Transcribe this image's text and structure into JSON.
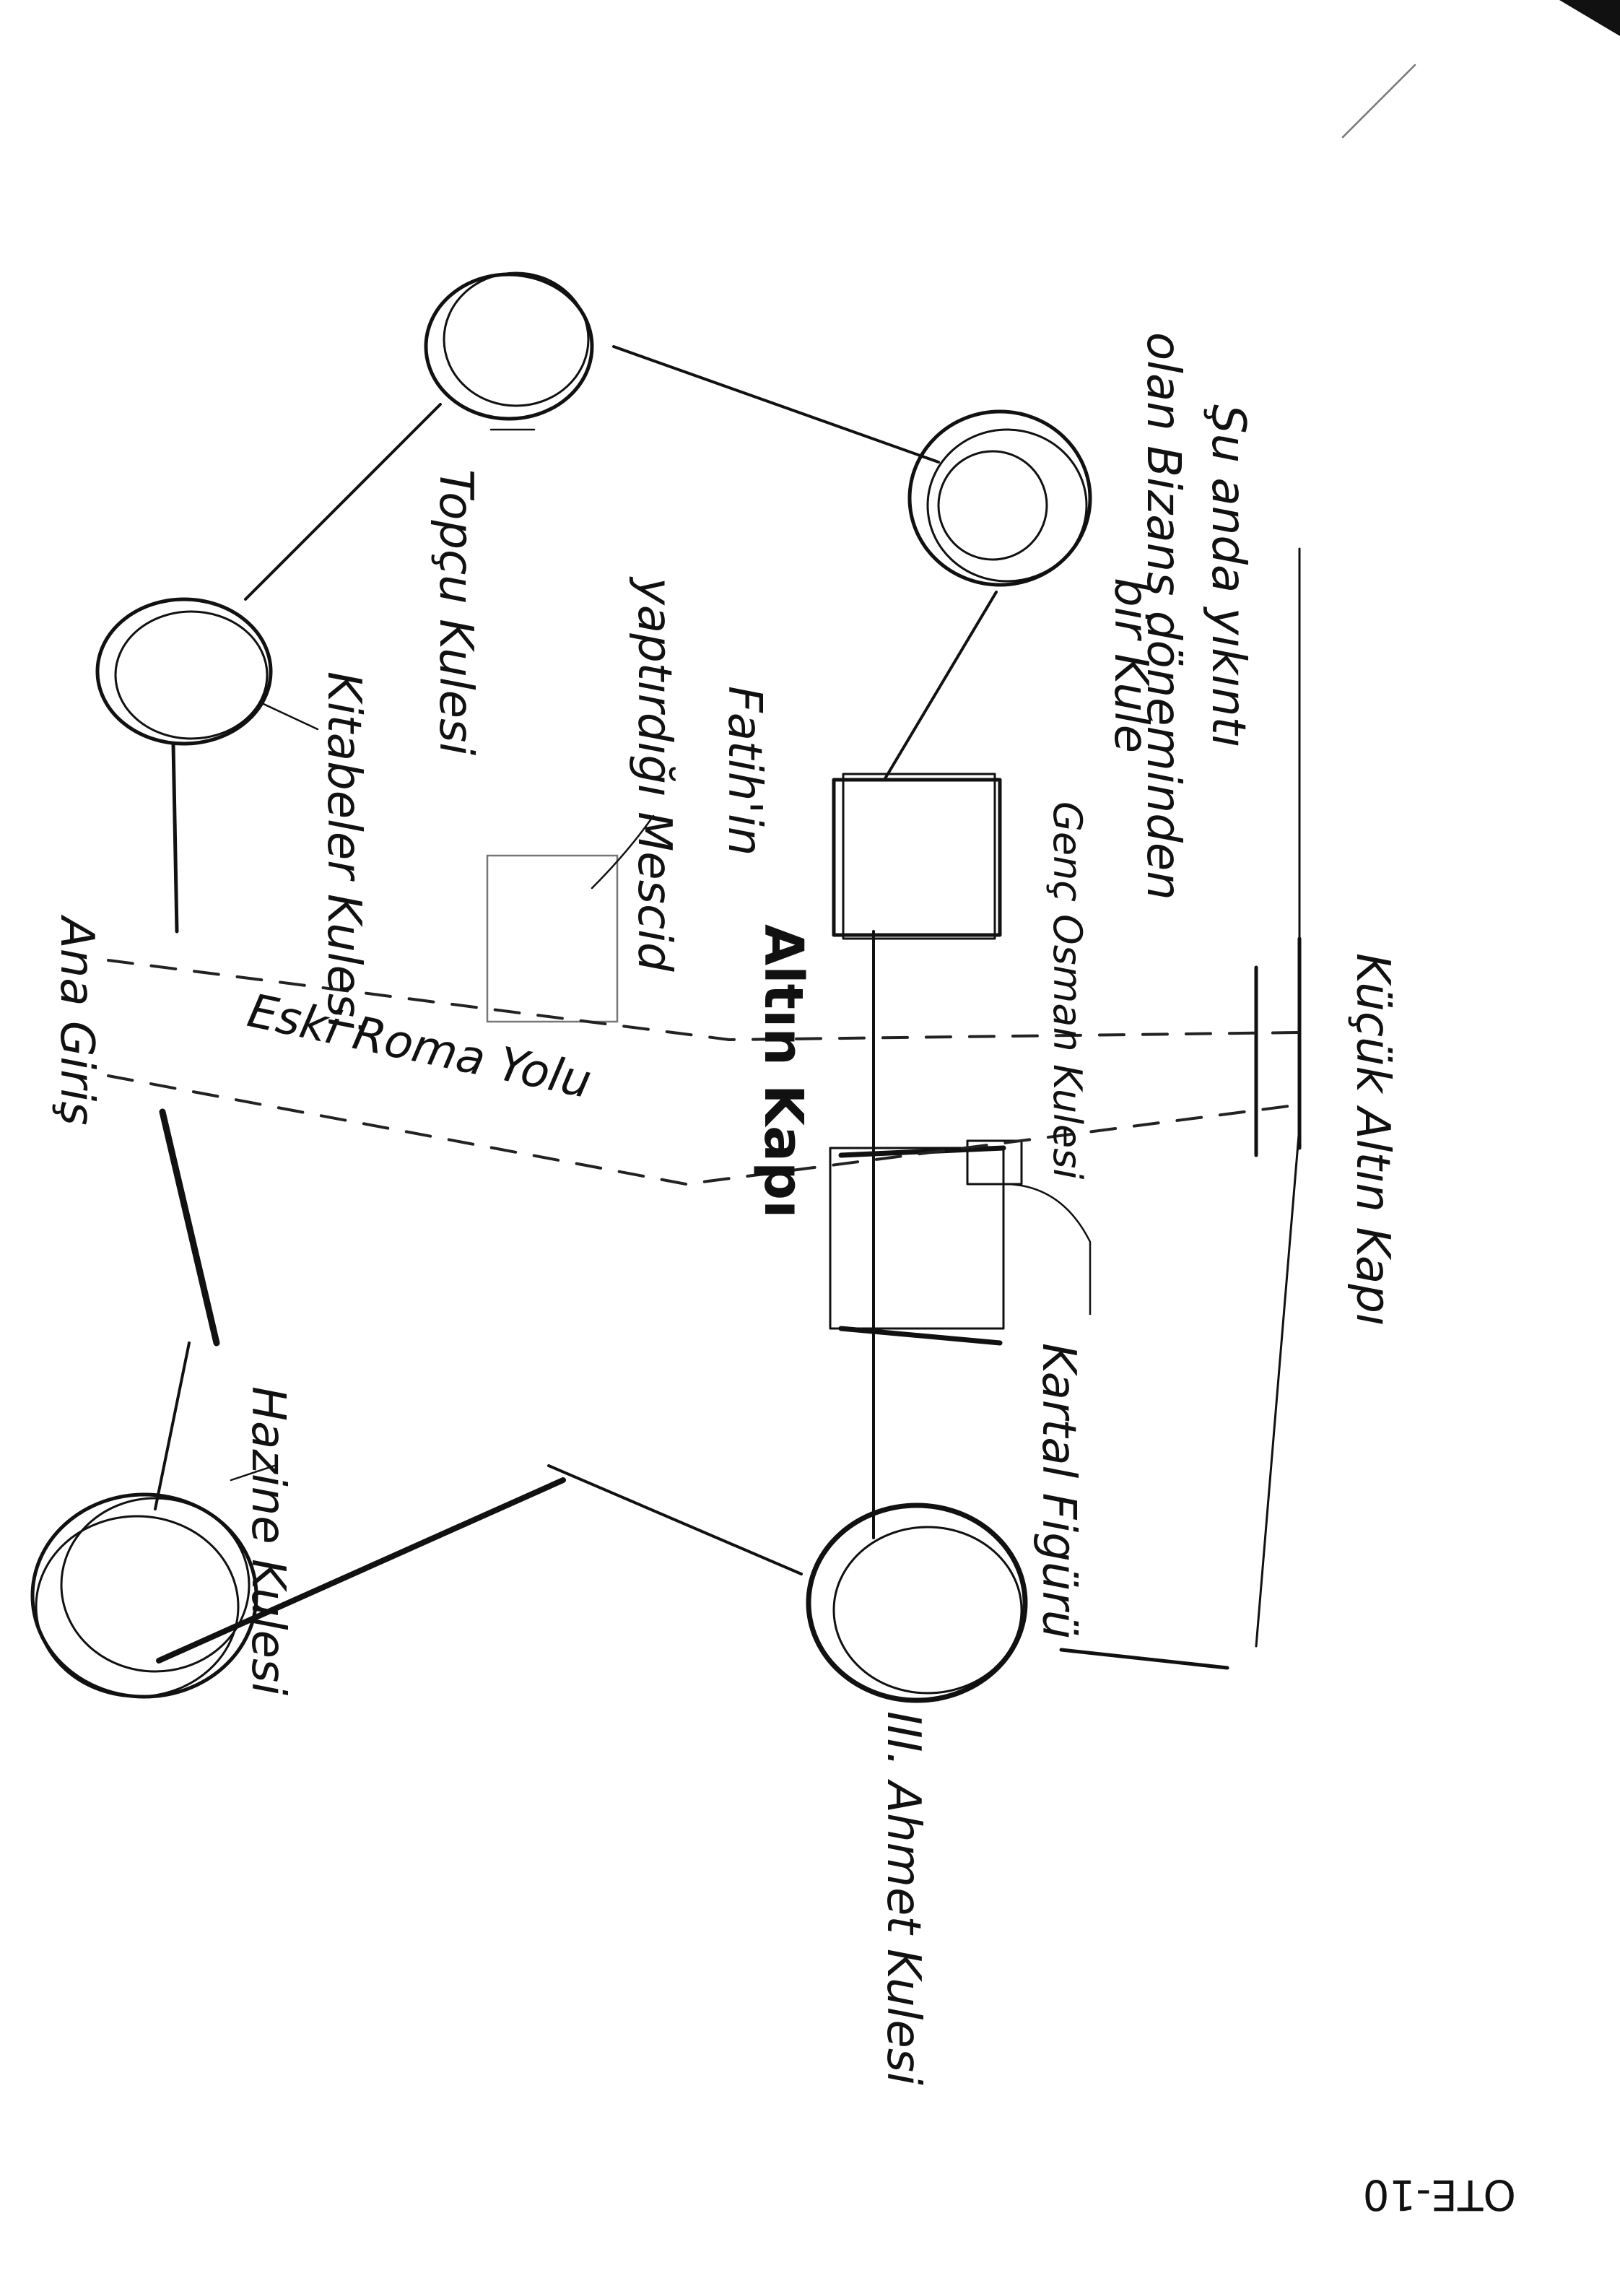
{
  "towers": {
    "topcu": "Topçu Kulesi",
    "kitabeler": "Kitabeler Kulesi",
    "hazine": "Hazine Kulesi",
    "ahmet": "III. Ahmet Kulesi",
    "bizans_line1": "Şu anda yıkıntı",
    "bizans_line2": "olan Bizans döneminden",
    "bizans_line3": "bir Kule",
    "genc_osman": "Genç Osman Kulesi"
  },
  "gates": {
    "altin": "Altın Kapı",
    "kucuk_altin": "Küçük Altın Kapı",
    "ana_giris": "Ana Giriş"
  },
  "features": {
    "mescid_line1": "Fatih'in",
    "mescid_line2": "yaptırdığı Mescid",
    "road": "Eski Roma Yolu",
    "kartal": "Kartal Figürü"
  },
  "page_code": "OTE-10"
}
